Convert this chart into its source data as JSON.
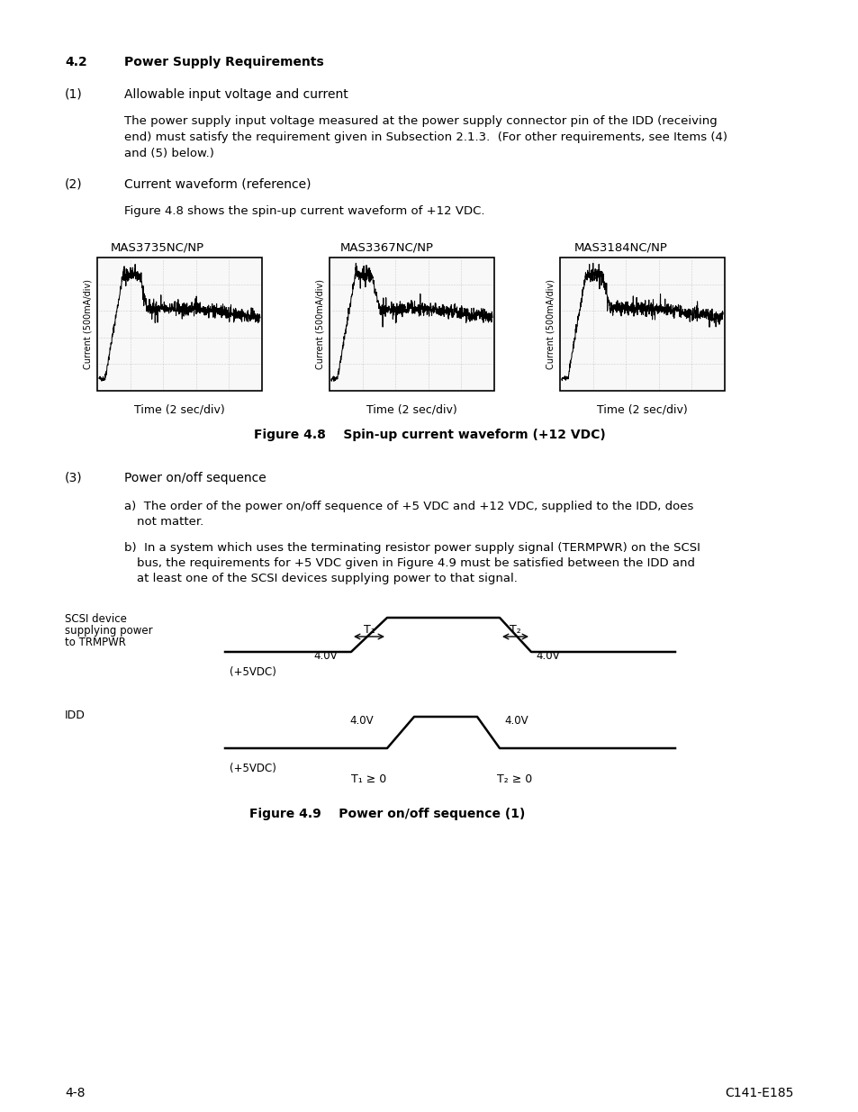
{
  "fig48_labels": [
    "MAS3735NC/NP",
    "MAS3367NC/NP",
    "MAS3184NC/NP"
  ],
  "fig48_xlabel": "Time (2 sec/div)",
  "fig48_ylabel": "Current (500mA/div)",
  "fig48_caption": "Figure 4.8    Spin-up current waveform (+12 VDC)",
  "fig49_caption": "Figure 4.9    Power on/off sequence (1)",
  "footer_left": "4-8",
  "footer_right": "C141-E185",
  "bg_color": "#ffffff"
}
